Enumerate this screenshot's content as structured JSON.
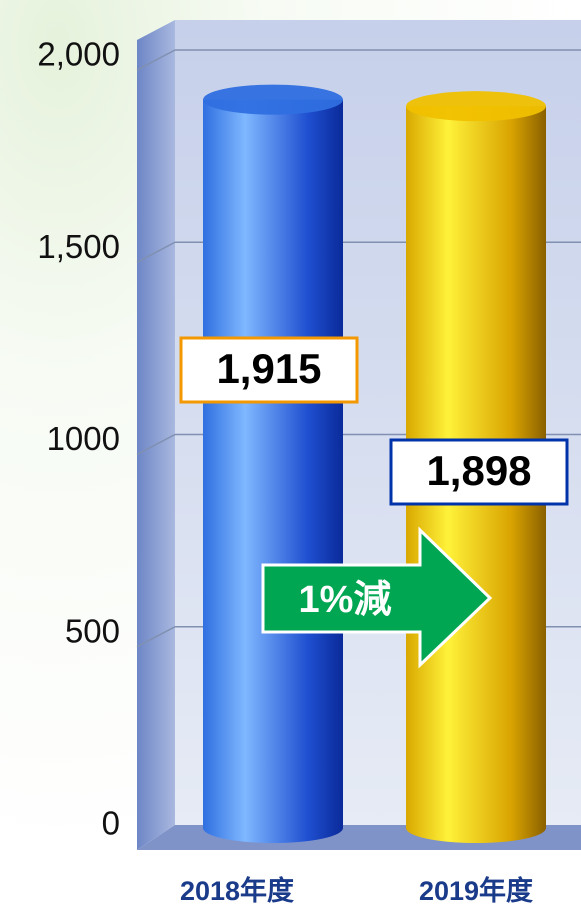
{
  "chart_data": {
    "type": "cylinder",
    "categories": [
      "2018年度",
      "2019年度"
    ],
    "values": [
      1915,
      1898
    ],
    "value_labels": [
      "1,915",
      "1,898"
    ],
    "colors": [
      "#2f6fe0",
      "#f0c000"
    ],
    "ylim": [
      0,
      2000
    ],
    "yticks": [
      0,
      500,
      1000,
      {
        "value": 1500,
        "label": "1,500"
      },
      {
        "value": 2000,
        "label": "2,000"
      }
    ],
    "grid": true,
    "annotation": "1%減"
  }
}
